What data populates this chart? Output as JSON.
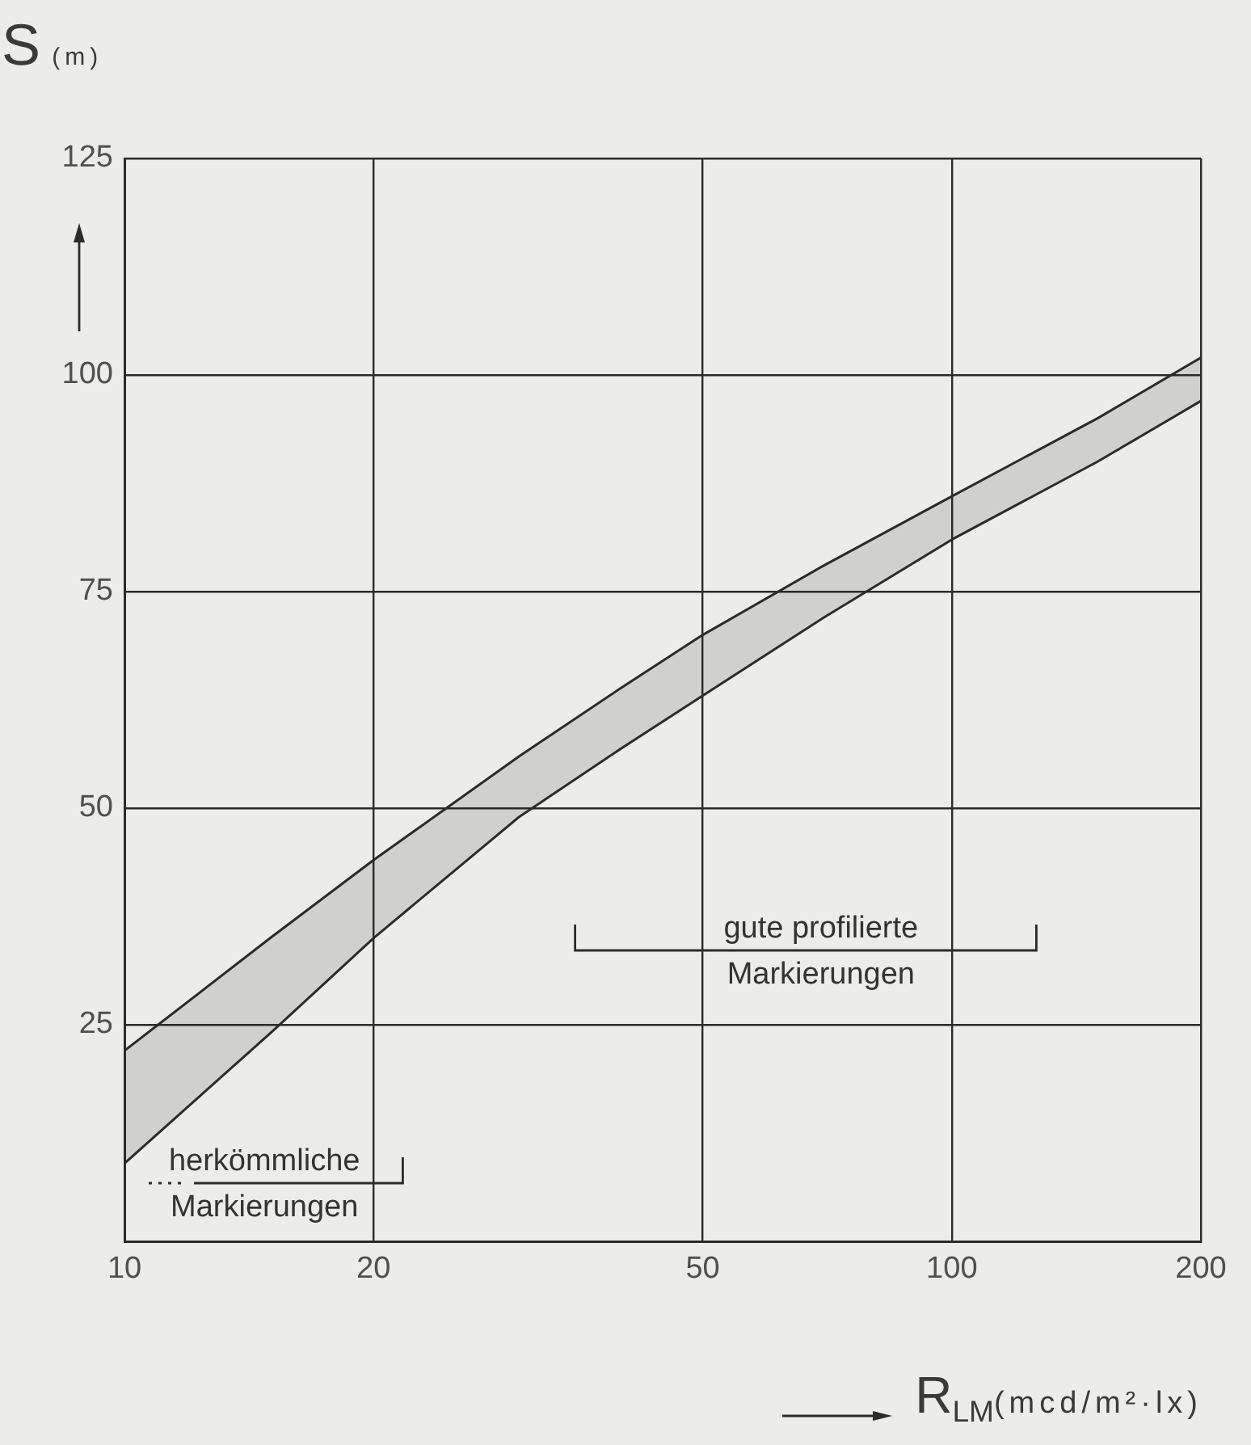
{
  "chart_data": {
    "type": "line",
    "xlabel": "R$_{LM}$(mcd/m²·lx)",
    "ylabel": "S (m)",
    "x": [
      10,
      15,
      20,
      30,
      40,
      50,
      70,
      100,
      150,
      200
    ],
    "series": [
      {
        "color": "#2b2b2b",
        "values": [
          22,
          35,
          44,
          56,
          64,
          70,
          78,
          86,
          95,
          102
        ],
        "lower": [
          9,
          24,
          35,
          49,
          57,
          63,
          72,
          81,
          90,
          97
        ],
        "upper": [
          22,
          35,
          44,
          56,
          64,
          70,
          78,
          86,
          95,
          102
        ]
      },
      {
        "color": "#2b2b2b",
        "values": [
          9,
          24,
          35,
          49,
          57,
          63,
          72,
          81,
          90,
          97
        ]
      }
    ],
    "xlim": [
      10,
      200
    ],
    "xticks": [
      10,
      20,
      50,
      100,
      200
    ],
    "ylim": [
      0,
      125
    ],
    "yticks": [
      25,
      50,
      75,
      100,
      125
    ],
    "log": "x",
    "grid": true,
    "annotations": [
      "herkömmliche Markierungen",
      "gute profilierte Markierungen"
    ]
  }
}
